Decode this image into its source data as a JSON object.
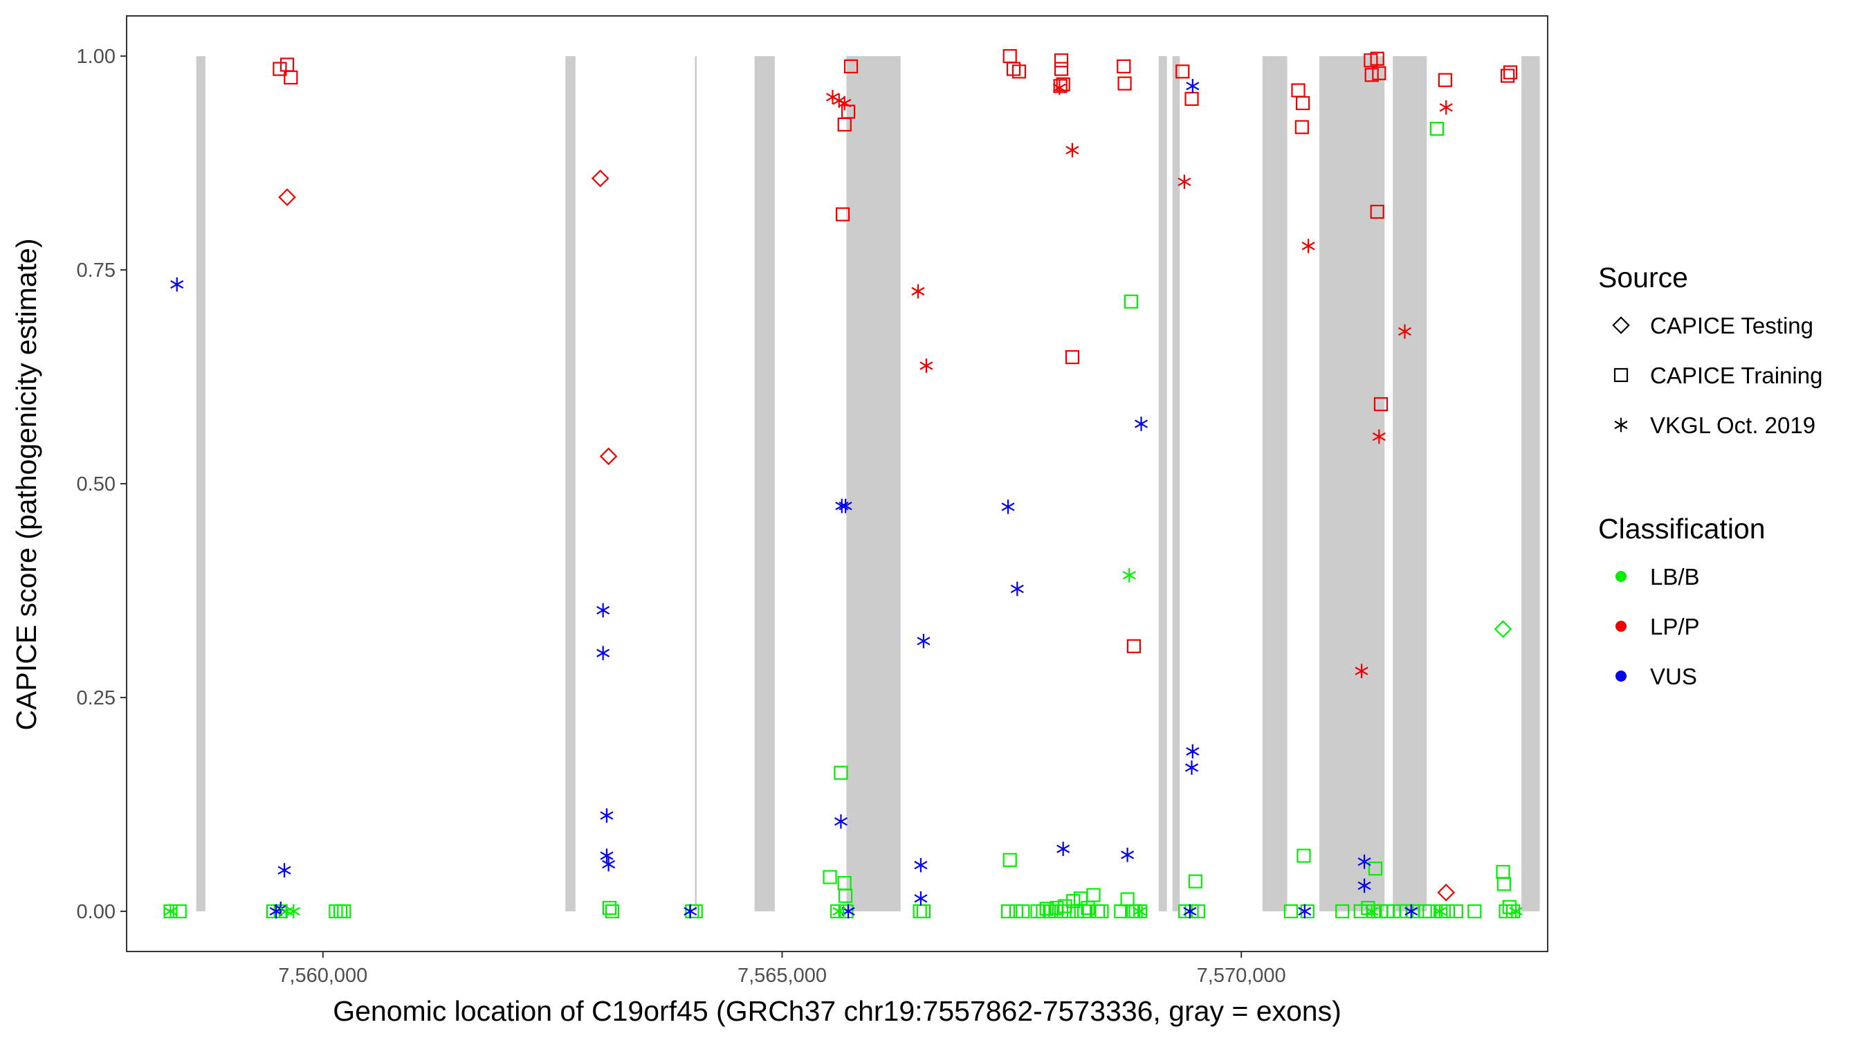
{
  "chart_data": {
    "type": "scatter",
    "title": "",
    "xlabel": "Genomic location of C19orf45 (GRCh37 chr19:7557862-7573336, gray = exons)",
    "ylabel": "CAPICE score (pathogenicity estimate)",
    "xlim": [
      7557862,
      7573336
    ],
    "ylim": [
      -0.047,
      1.047
    ],
    "x_ticks": [
      7560000,
      7565000,
      7570000
    ],
    "x_tick_labels": [
      "7,560,000",
      "7,565,000",
      "7,570,000"
    ],
    "y_ticks": [
      0,
      0.25,
      0.5,
      0.75,
      1
    ],
    "y_tick_labels": [
      "0.00",
      "0.25",
      "0.50",
      "0.75",
      "1.00"
    ],
    "grid": false,
    "legend_position": "right",
    "exons": [
      [
        7558620,
        7558720
      ],
      [
        7562640,
        7562750
      ],
      [
        7564050,
        7564070
      ],
      [
        7564700,
        7564920
      ],
      [
        7565700,
        7566290
      ],
      [
        7569100,
        7569190
      ],
      [
        7569250,
        7569330
      ],
      [
        7570230,
        7570500
      ],
      [
        7570850,
        7571560
      ],
      [
        7571650,
        7572020
      ],
      [
        7573050,
        7573250
      ]
    ],
    "legend": {
      "source_title": "Source",
      "source_items": [
        {
          "label": "CAPICE Testing",
          "shape": "diamond"
        },
        {
          "label": "CAPICE Training",
          "shape": "square"
        },
        {
          "label": "VKGL Oct. 2019",
          "shape": "asterisk"
        }
      ],
      "class_title": "Classification",
      "class_items": [
        {
          "label": "LB/B",
          "color": "#00ee00"
        },
        {
          "label": "LP/P",
          "color": "#ee0000"
        },
        {
          "label": "VUS",
          "color": "#0000ee"
        }
      ]
    },
    "series": [
      {
        "source": "CAPICE Testing",
        "classification": "LP/P",
        "points": [
          [
            7559610,
            0.835
          ],
          [
            7563020,
            0.857
          ],
          [
            7563110,
            0.532
          ],
          [
            7572230,
            0.022
          ]
        ]
      },
      {
        "source": "CAPICE Testing",
        "classification": "LB/B",
        "points": [
          [
            7572850,
            0.33
          ]
        ]
      },
      {
        "source": "CAPICE Training",
        "classification": "LP/P",
        "points": [
          [
            7559530,
            0.985
          ],
          [
            7559610,
            0.99
          ],
          [
            7559650,
            0.975
          ],
          [
            7565750,
            0.988
          ],
          [
            7565720,
            0.935
          ],
          [
            7565680,
            0.92
          ],
          [
            7565660,
            0.815
          ],
          [
            7567480,
            1.0
          ],
          [
            7567520,
            0.985
          ],
          [
            7567580,
            0.982
          ],
          [
            7568040,
            0.995
          ],
          [
            7568040,
            0.985
          ],
          [
            7568030,
            0.965
          ],
          [
            7568060,
            0.967
          ],
          [
            7568160,
            0.648
          ],
          [
            7568720,
            0.988
          ],
          [
            7568730,
            0.968
          ],
          [
            7568830,
            0.31
          ],
          [
            7569360,
            0.982
          ],
          [
            7569460,
            0.95
          ],
          [
            7570620,
            0.96
          ],
          [
            7570670,
            0.945
          ],
          [
            7570660,
            0.917
          ],
          [
            7571410,
            0.995
          ],
          [
            7571480,
            0.997
          ],
          [
            7571420,
            0.978
          ],
          [
            7571500,
            0.98
          ],
          [
            7571480,
            0.818
          ],
          [
            7571520,
            0.593
          ],
          [
            7572220,
            0.972
          ],
          [
            7572900,
            0.977
          ],
          [
            7572930,
            0.981
          ]
        ]
      },
      {
        "source": "CAPICE Training",
        "classification": "LB/B",
        "points": [
          [
            7558340,
            0.0
          ],
          [
            7558440,
            0.0
          ],
          [
            7559460,
            0.0
          ],
          [
            7559540,
            0.0
          ],
          [
            7560140,
            0.0
          ],
          [
            7560190,
            0.0
          ],
          [
            7560230,
            0.0
          ],
          [
            7563120,
            0.004
          ],
          [
            7563150,
            0.0
          ],
          [
            7564020,
            0.0
          ],
          [
            7564060,
            0.0
          ],
          [
            7565520,
            0.04
          ],
          [
            7565640,
            0.162
          ],
          [
            7565680,
            0.033
          ],
          [
            7565690,
            0.018
          ],
          [
            7565600,
            0.0
          ],
          [
            7565700,
            0.0
          ],
          [
            7566500,
            0.0
          ],
          [
            7566540,
            0.0
          ],
          [
            7567480,
            0.06
          ],
          [
            7567460,
            0.0
          ],
          [
            7567550,
            0.0
          ],
          [
            7567620,
            0.0
          ],
          [
            7567780,
            0.0
          ],
          [
            7567840,
            0.0
          ],
          [
            7567880,
            0.003
          ],
          [
            7567930,
            0.0
          ],
          [
            7567990,
            0.004
          ],
          [
            7568040,
            0.0
          ],
          [
            7568080,
            0.006
          ],
          [
            7568120,
            0.0
          ],
          [
            7568170,
            0.012
          ],
          [
            7568210,
            0.0
          ],
          [
            7568250,
            0.015
          ],
          [
            7568290,
            0.0
          ],
          [
            7568330,
            0.004
          ],
          [
            7568390,
            0.019
          ],
          [
            7568440,
            0.0
          ],
          [
            7568480,
            0.0
          ],
          [
            7568690,
            0.0
          ],
          [
            7568760,
            0.014
          ],
          [
            7568810,
            0.0
          ],
          [
            7568850,
            0.0
          ],
          [
            7568900,
            0.0
          ],
          [
            7568800,
            0.713
          ],
          [
            7569390,
            0.0
          ],
          [
            7569460,
            0.0
          ],
          [
            7569500,
            0.035
          ],
          [
            7569530,
            0.0
          ],
          [
            7570540,
            0.0
          ],
          [
            7570680,
            0.065
          ],
          [
            7570720,
            0.0
          ],
          [
            7571100,
            0.0
          ],
          [
            7571300,
            0.0
          ],
          [
            7571380,
            0.004
          ],
          [
            7571460,
            0.05
          ],
          [
            7571440,
            0.0
          ],
          [
            7571520,
            0.0
          ],
          [
            7571590,
            0.0
          ],
          [
            7571660,
            0.0
          ],
          [
            7571730,
            0.0
          ],
          [
            7571800,
            0.0
          ],
          [
            7571870,
            0.0
          ],
          [
            7572000,
            0.0
          ],
          [
            7572050,
            0.0
          ],
          [
            7572130,
            0.915
          ],
          [
            7572170,
            0.0
          ],
          [
            7572250,
            0.0
          ],
          [
            7572340,
            0.0
          ],
          [
            7572540,
            0.0
          ],
          [
            7572850,
            0.046
          ],
          [
            7572860,
            0.032
          ],
          [
            7572880,
            0.0
          ],
          [
            7572920,
            0.005
          ],
          [
            7572960,
            0.0
          ]
        ]
      },
      {
        "source": "VKGL Oct. 2019",
        "classification": "LP/P",
        "points": [
          [
            7565550,
            0.952
          ],
          [
            7565620,
            0.948
          ],
          [
            7565680,
            0.945
          ],
          [
            7566480,
            0.725
          ],
          [
            7566570,
            0.638
          ],
          [
            7568020,
            0.963
          ],
          [
            7568160,
            0.89
          ],
          [
            7569380,
            0.853
          ],
          [
            7570730,
            0.778
          ],
          [
            7571310,
            0.281
          ],
          [
            7571500,
            0.555
          ],
          [
            7571780,
            0.678
          ],
          [
            7572230,
            0.94
          ]
        ]
      },
      {
        "source": "VKGL Oct. 2019",
        "classification": "VUS",
        "points": [
          [
            7558410,
            0.733
          ],
          [
            7559490,
            0.0
          ],
          [
            7559540,
            0.003
          ],
          [
            7559580,
            0.048
          ],
          [
            7563050,
            0.352
          ],
          [
            7563050,
            0.302
          ],
          [
            7563090,
            0.112
          ],
          [
            7563090,
            0.065
          ],
          [
            7563110,
            0.055
          ],
          [
            7564000,
            0.0
          ],
          [
            7565650,
            0.474
          ],
          [
            7565690,
            0.474
          ],
          [
            7565640,
            0.105
          ],
          [
            7565720,
            0.0
          ],
          [
            7566510,
            0.054
          ],
          [
            7566510,
            0.015
          ],
          [
            7566540,
            0.316
          ],
          [
            7567460,
            0.473
          ],
          [
            7567560,
            0.377
          ],
          [
            7568060,
            0.073
          ],
          [
            7568760,
            0.066
          ],
          [
            7568910,
            0.57
          ],
          [
            7569440,
            0.0
          ],
          [
            7569470,
            0.965
          ],
          [
            7569470,
            0.187
          ],
          [
            7569460,
            0.168
          ],
          [
            7570690,
            0.0
          ],
          [
            7571340,
            0.058
          ],
          [
            7571340,
            0.03
          ],
          [
            7571850,
            0.0
          ]
        ]
      },
      {
        "source": "VKGL Oct. 2019",
        "classification": "LB/B",
        "points": [
          [
            7558340,
            0.0
          ],
          [
            7559600,
            0.0
          ],
          [
            7559680,
            0.0
          ],
          [
            7565620,
            0.0
          ],
          [
            7568780,
            0.393
          ],
          [
            7568890,
            0.0
          ],
          [
            7571420,
            0.0
          ],
          [
            7572160,
            0.0
          ],
          [
            7572990,
            0.0
          ]
        ]
      }
    ]
  }
}
